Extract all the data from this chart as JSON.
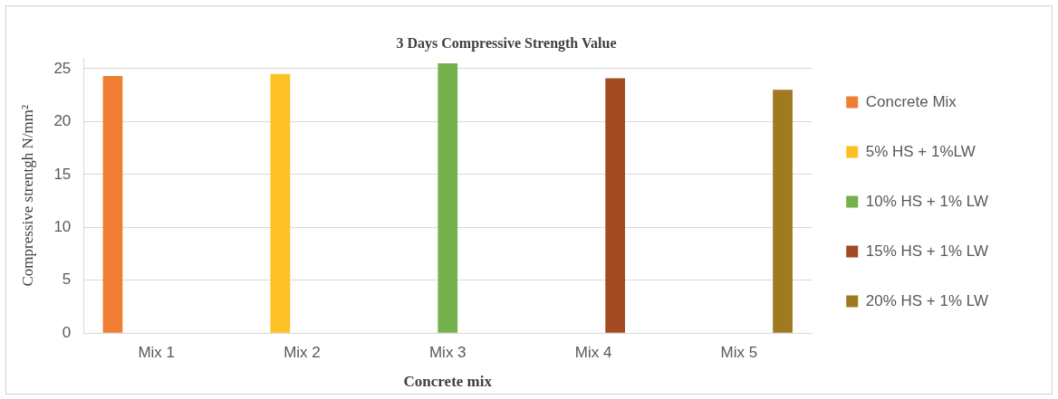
{
  "chart_data": {
    "type": "bar",
    "title": "3 Days Compressive Strength Value",
    "xlabel": "Concrete mix",
    "ylabel": "Compressive strentgh N/mm²",
    "categories": [
      "Mix 1",
      "Mix 2",
      "Mix 3",
      "Mix 4",
      "Mix 5"
    ],
    "series": [
      {
        "name": "Concrete Mix",
        "color": "#f07f35",
        "values": [
          24.3,
          null,
          null,
          null,
          null
        ]
      },
      {
        "name": "5% HS + 1%LW",
        "color": "#fdc125",
        "values": [
          null,
          24.5,
          null,
          null,
          null
        ]
      },
      {
        "name": "10% HS + 1% LW",
        "color": "#74b04b",
        "values": [
          null,
          null,
          25.5,
          null,
          null
        ]
      },
      {
        "name": "15% HS + 1% LW",
        "color": "#a24a22",
        "values": [
          null,
          null,
          null,
          24.1,
          null
        ]
      },
      {
        "name": "20% HS + 1% LW",
        "color": "#a07a20",
        "values": [
          null,
          null,
          null,
          null,
          23.0
        ]
      }
    ],
    "ylim": [
      0,
      26
    ],
    "yticks": [
      0,
      5,
      10,
      15,
      20,
      25
    ],
    "grid": "y",
    "legend": "right"
  }
}
